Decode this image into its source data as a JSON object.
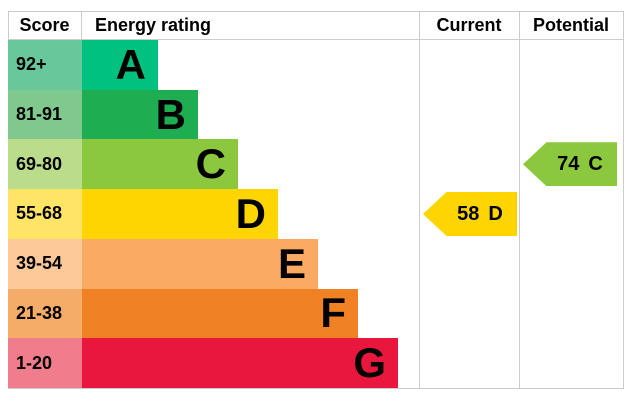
{
  "header": {
    "score": "Score",
    "energy_rating": "Energy rating",
    "current": "Current",
    "potential": "Potential"
  },
  "chart_data": {
    "type": "epc-energy-rating-bar",
    "title": "",
    "bands": [
      {
        "band": "A",
        "score_range": "92+",
        "bar_color": "#00c180",
        "score_cell_color": "#68c89b"
      },
      {
        "band": "B",
        "score_range": "81-91",
        "bar_color": "#1fad52",
        "score_cell_color": "#7fc98e"
      },
      {
        "band": "C",
        "score_range": "69-80",
        "bar_color": "#8cc83d",
        "score_cell_color": "#bbdc8b"
      },
      {
        "band": "D",
        "score_range": "55-68",
        "bar_color": "#ffd500",
        "score_cell_color": "#ffe465"
      },
      {
        "band": "E",
        "score_range": "39-54",
        "bar_color": "#fbaa64",
        "score_cell_color": "#fdc998"
      },
      {
        "band": "F",
        "score_range": "21-38",
        "bar_color": "#f08125",
        "score_cell_color": "#f5ac68"
      },
      {
        "band": "G",
        "score_range": "1-20",
        "bar_color": "#e9173d",
        "score_cell_color": "#f17c8b"
      }
    ],
    "current": {
      "score": "58",
      "band": "D",
      "arrow_color": "#ffd500"
    },
    "potential": {
      "score": "74",
      "band": "C",
      "arrow_color": "#8cc83d"
    },
    "legend_position": "none",
    "grid": "column-separators-only"
  },
  "colors": {
    "grid_line": "#cccccc",
    "text": "#000000",
    "background": "#ffffff"
  }
}
